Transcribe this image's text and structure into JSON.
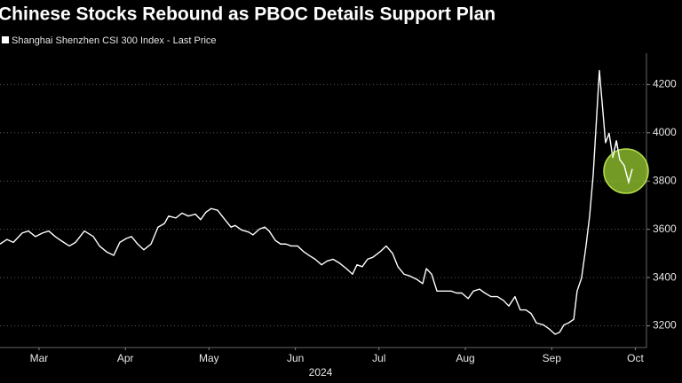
{
  "chart_data": {
    "type": "line",
    "title": "Chinese Stocks Rebound as PBOC Details Support Plan",
    "xlabel": "2024",
    "x": [
      61,
      63.5,
      65.8,
      69,
      71.2,
      73.7,
      76.3,
      78.5,
      80.8,
      83.3,
      85.9,
      88.1,
      91.3,
      94.5,
      96.7,
      99.2,
      101.8,
      104,
      106.3,
      108.2,
      110.4,
      112.6,
      115.2,
      117.7,
      120,
      121.5,
      124.1,
      126.3,
      128.6,
      131.1,
      133,
      134.9,
      136.8,
      139.1,
      140.7,
      142.3,
      143.9,
      145.4,
      147.7,
      150.2,
      151.8,
      154.1,
      156,
      157.6,
      159.8,
      161.7,
      163.6,
      165.5,
      167.8,
      170,
      171.9,
      174.1,
      176.4,
      178.3,
      180.5,
      182.7,
      185.3,
      187.5,
      189.1,
      191,
      192.9,
      194.8,
      197.4,
      199.6,
      201.9,
      203.8,
      206,
      208.2,
      210.8,
      212.7,
      214,
      215.9,
      217.8,
      220.3,
      222.9,
      224.8,
      226.7,
      229,
      230.9,
      233.1,
      235,
      237.2,
      239.5,
      241.7,
      243.6,
      245.8,
      247.7,
      249.7,
      251.6,
      253.5,
      256,
      258,
      260.2,
      261.8,
      263.4,
      265,
      266.9,
      268.1,
      269.7,
      271.3,
      272.6,
      273.9,
      275.2,
      276.1,
      277.4,
      278.3,
      279.6,
      280.9,
      282.2,
      283.4,
      285,
      286.6,
      287.9
    ],
    "series": [
      {
        "name": "Shanghai Shenzhen CSI 300 Index - Last Price",
        "color": "#ffffff",
        "values": [
          3539,
          3558,
          3546,
          3585,
          3593,
          3570,
          3585,
          3593,
          3570,
          3550,
          3531,
          3546,
          3593,
          3570,
          3531,
          3507,
          3492,
          3546,
          3562,
          3570,
          3539,
          3515,
          3539,
          3609,
          3624,
          3655,
          3647,
          3667,
          3655,
          3663,
          3640,
          3671,
          3686,
          3679,
          3655,
          3632,
          3609,
          3616,
          3597,
          3589,
          3577,
          3601,
          3609,
          3593,
          3554,
          3539,
          3539,
          3531,
          3531,
          3507,
          3492,
          3476,
          3453,
          3468,
          3476,
          3461,
          3437,
          3414,
          3453,
          3445,
          3476,
          3484,
          3507,
          3531,
          3500,
          3445,
          3414,
          3406,
          3391,
          3375,
          3437,
          3414,
          3344,
          3344,
          3344,
          3336,
          3336,
          3313,
          3344,
          3352,
          3336,
          3321,
          3321,
          3305,
          3282,
          3321,
          3266,
          3266,
          3251,
          3212,
          3204,
          3188,
          3165,
          3173,
          3204,
          3212,
          3227,
          3344,
          3398,
          3531,
          3655,
          3830,
          4083,
          4258,
          4083,
          3959,
          3998,
          3897,
          3967,
          3889,
          3865,
          3795,
          3850
        ]
      }
    ],
    "xlim": [
      61,
      293
    ],
    "xticks": [
      {
        "value": 75,
        "label": "Mar"
      },
      {
        "value": 106,
        "label": "Apr"
      },
      {
        "value": 136,
        "label": "May"
      },
      {
        "value": 167,
        "label": "Jun"
      },
      {
        "value": 197,
        "label": "Jul"
      },
      {
        "value": 228,
        "label": "Aug"
      },
      {
        "value": 259,
        "label": "Sep"
      },
      {
        "value": 289,
        "label": "Oct"
      }
    ],
    "ylim": [
      3110,
      4330
    ],
    "yticks": [
      3200,
      3400,
      3600,
      3800,
      4000,
      4200
    ],
    "grid": true
  }
}
